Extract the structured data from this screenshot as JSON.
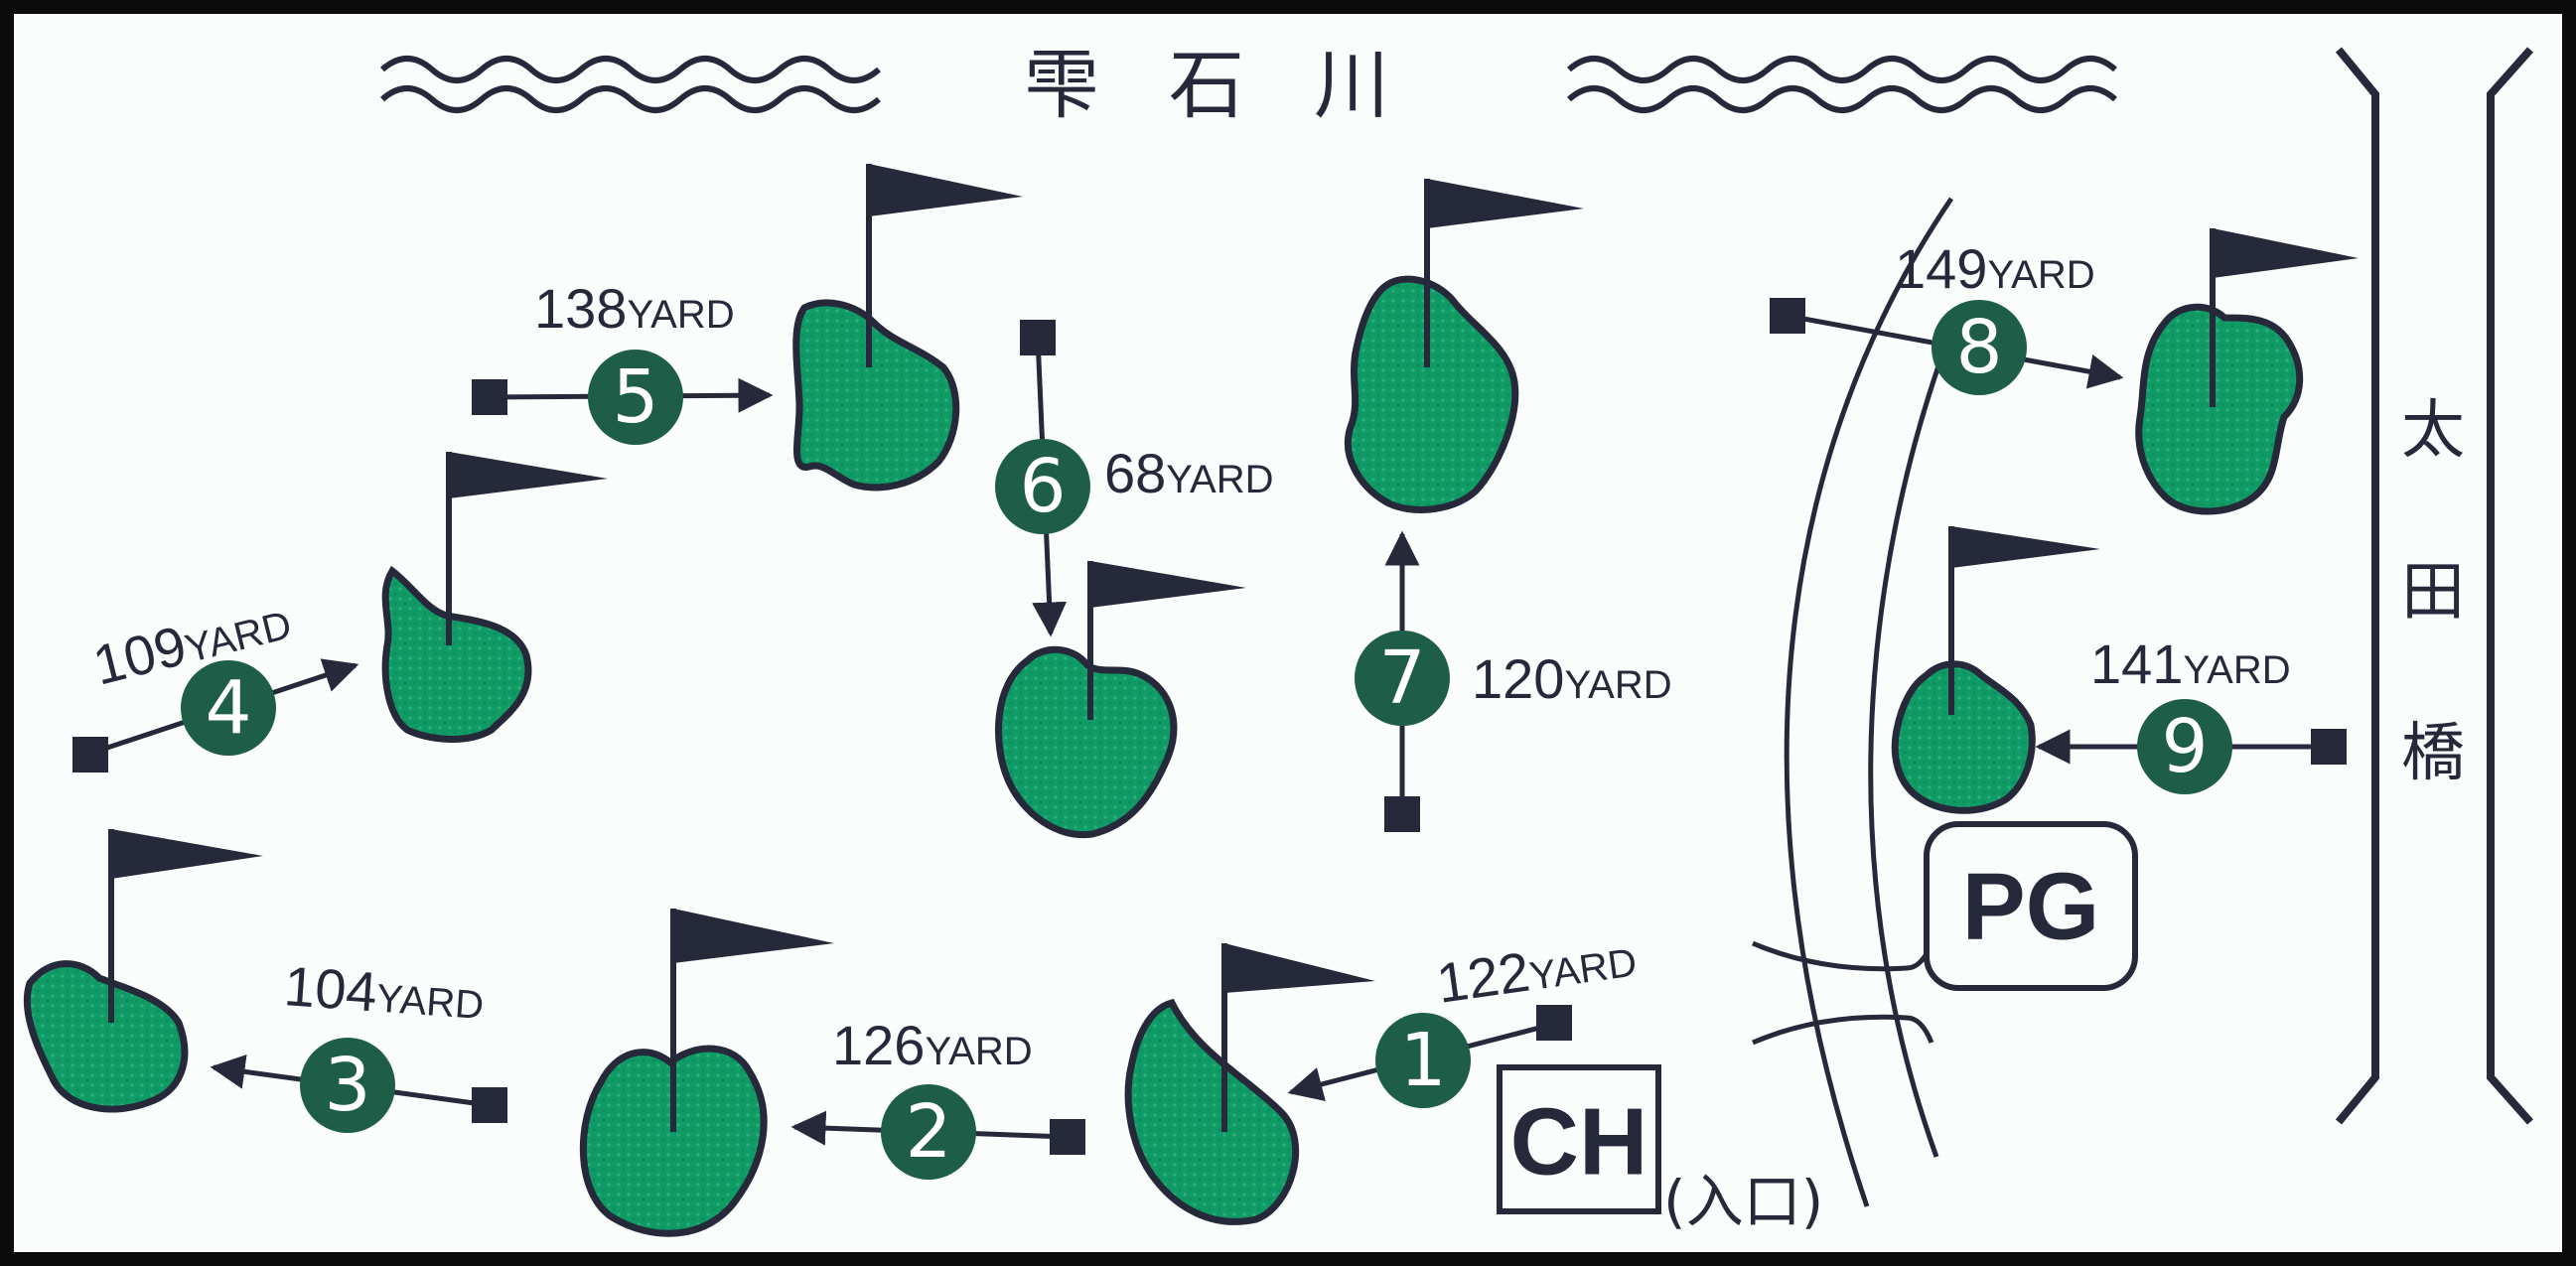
{
  "map": {
    "river_name": "雫石川",
    "bridge_name": "太田橋",
    "facilities": [
      {
        "id": "pg",
        "label": "PG"
      },
      {
        "id": "ch",
        "label": "CH",
        "note": "(入口)"
      }
    ],
    "holes": [
      {
        "number": "1",
        "yardage": "122",
        "unit": "YARD"
      },
      {
        "number": "2",
        "yardage": "126",
        "unit": "YARD"
      },
      {
        "number": "3",
        "yardage": "104",
        "unit": "YARD"
      },
      {
        "number": "4",
        "yardage": "109",
        "unit": "YARD"
      },
      {
        "number": "5",
        "yardage": "138",
        "unit": "YARD"
      },
      {
        "number": "6",
        "yardage": "68",
        "unit": "YARD"
      },
      {
        "number": "7",
        "yardage": "120",
        "unit": "YARD"
      },
      {
        "number": "8",
        "yardage": "149",
        "unit": "YARD"
      },
      {
        "number": "9",
        "yardage": "141",
        "unit": "YARD"
      }
    ],
    "colors": {
      "green": "#0f9a66",
      "marker": "#1e5e49",
      "ink": "#25293a",
      "background": "#fbfdfc",
      "frame": "#0b0b0b"
    }
  }
}
